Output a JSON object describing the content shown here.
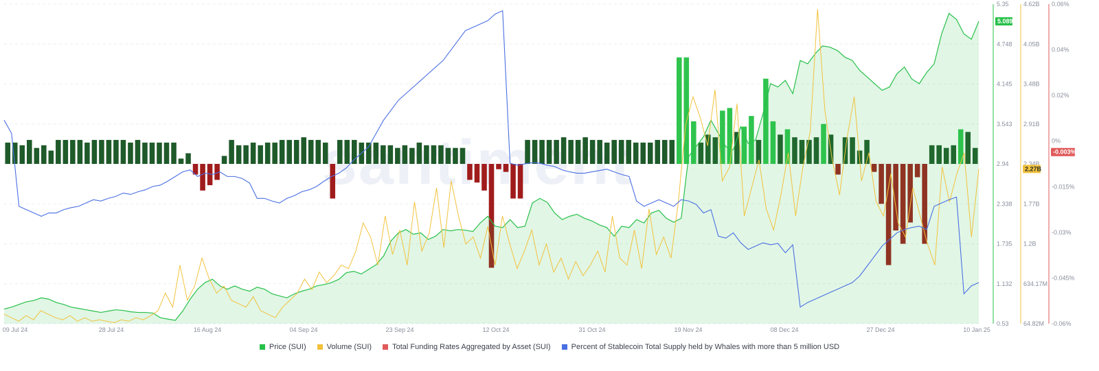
{
  "chart_data": {
    "type": "line",
    "watermark": "santiment",
    "x_ticks": [
      "09 Jul 24",
      "28 Jul 24",
      "16 Aug 24",
      "04 Sep 24",
      "23 Sep 24",
      "12 Oct 24",
      "31 Oct 24",
      "19 Nov 24",
      "08 Dec 24",
      "27 Dec 24",
      "10 Jan 25"
    ],
    "axes": {
      "price": {
        "ticks": [
          "5.35",
          "4.748",
          "4.145",
          "3.543",
          "2.94",
          "2.338",
          "1.735",
          "1.132",
          "0.53"
        ],
        "ylim": [
          0.53,
          5.35
        ],
        "current": "5.089"
      },
      "volume": {
        "ticks": [
          "4.62B",
          "4.05B",
          "3.48B",
          "2.91B",
          "2.34B",
          "1.77B",
          "1.2B",
          "634.17M",
          "64.82M"
        ],
        "ylim_billions": [
          0.06482,
          4.62
        ],
        "current": "2.27B"
      },
      "funding": {
        "ticks": [
          "0.06%",
          "0.04%",
          "0.02%",
          "0%",
          "-0.015%",
          "-0.03%",
          "-0.045%",
          "-0.06%"
        ],
        "ylim": [
          -0.06,
          0.06
        ],
        "current": "-0.003%"
      }
    },
    "series": [
      {
        "name": "Price (SUI)",
        "color": "#27c04a",
        "axis": "price",
        "values": [
          0.75,
          0.78,
          0.82,
          0.86,
          0.88,
          0.92,
          0.9,
          0.85,
          0.82,
          0.78,
          0.76,
          0.74,
          0.72,
          0.7,
          0.72,
          0.74,
          0.73,
          0.71,
          0.7,
          0.7,
          0.69,
          0.62,
          0.6,
          0.58,
          0.72,
          0.9,
          1.05,
          1.15,
          1.2,
          1.1,
          1.05,
          1.1,
          1.05,
          1.02,
          1.08,
          1.05,
          0.98,
          0.95,
          0.92,
          0.98,
          1.02,
          1.05,
          1.1,
          1.12,
          1.15,
          1.2,
          1.3,
          1.32,
          1.28,
          1.35,
          1.42,
          1.55,
          1.78,
          1.9,
          1.95,
          1.88,
          1.9,
          1.8,
          1.85,
          1.95,
          1.93,
          1.95,
          1.94,
          1.92,
          2.05,
          2.15,
          2.0,
          1.98,
          2.1,
          1.98,
          2.0,
          2.35,
          2.42,
          2.36,
          2.2,
          2.1,
          2.15,
          2.18,
          2.12,
          2.08,
          2.02,
          1.98,
          1.85,
          2.0,
          1.98,
          2.1,
          2.05,
          2.2,
          2.24,
          2.12,
          2.06,
          2.12,
          3.05,
          3.2,
          3.35,
          3.6,
          3.4,
          3.2,
          3.15,
          3.5,
          3.25,
          3.3,
          3.7,
          4.15,
          4.1,
          4.2,
          4.0,
          4.5,
          4.45,
          4.6,
          4.72,
          4.7,
          4.65,
          4.55,
          4.5,
          4.35,
          4.25,
          4.15,
          4.05,
          4.1,
          4.3,
          4.4,
          4.22,
          4.15,
          4.32,
          4.45,
          4.9,
          5.21,
          5.12,
          4.9,
          4.82,
          5.09
        ]
      },
      {
        "name": "Volume (SUI)",
        "color": "#f2c23d",
        "axis": "volume",
        "unit": "B",
        "values": [
          0.2,
          0.15,
          0.1,
          0.18,
          0.12,
          0.25,
          0.2,
          0.15,
          0.12,
          0.18,
          0.1,
          0.15,
          0.1,
          0.12,
          0.1,
          0.08,
          0.12,
          0.1,
          0.15,
          0.12,
          0.18,
          0.25,
          0.5,
          0.3,
          0.9,
          0.4,
          0.6,
          1.0,
          0.7,
          0.5,
          0.6,
          0.4,
          0.35,
          0.3,
          0.45,
          0.25,
          0.2,
          0.15,
          0.3,
          0.4,
          0.5,
          0.7,
          0.55,
          0.8,
          0.65,
          0.75,
          0.9,
          0.85,
          1.1,
          1.5,
          1.3,
          0.9,
          1.6,
          1.05,
          1.4,
          0.9,
          1.8,
          1.1,
          1.35,
          2.0,
          1.15,
          2.1,
          1.6,
          1.2,
          1.3,
          1.0,
          1.45,
          0.9,
          1.6,
          1.2,
          0.85,
          1.1,
          1.4,
          0.9,
          1.2,
          0.8,
          1.0,
          0.7,
          0.95,
          0.75,
          0.9,
          1.1,
          0.8,
          1.6,
          1.0,
          0.9,
          1.4,
          0.85,
          1.7,
          1.05,
          1.3,
          1.0,
          1.8,
          2.9,
          3.3,
          3.0,
          2.6,
          3.4,
          2.1,
          2.3,
          3.2,
          1.6,
          2.0,
          2.4,
          1.7,
          1.4,
          1.9,
          2.5,
          1.6,
          2.3,
          2.8,
          4.55,
          3.1,
          2.4,
          1.9,
          2.7,
          3.3,
          2.1,
          2.5,
          1.8,
          1.6,
          2.2,
          1.5,
          1.3,
          2.0,
          1.6,
          1.2,
          0.9,
          2.3,
          1.8,
          2.2,
          2.5,
          1.3,
          2.27
        ]
      },
      {
        "name": "Total Funding Rates Aggregated by Asset (SUI)",
        "color": "#e05a5a",
        "axis": "funding",
        "unit": "%",
        "values": [
          0.008,
          0.008,
          0.007,
          0.009,
          0.006,
          0.007,
          0.005,
          0.009,
          0.009,
          0.009,
          0.009,
          0.008,
          0.009,
          0.009,
          0.009,
          0.009,
          0.009,
          0.008,
          0.009,
          0.008,
          0.008,
          0.008,
          0.008,
          0.008,
          0.002,
          0.004,
          -0.004,
          -0.01,
          -0.008,
          -0.006,
          0.003,
          0.009,
          0.007,
          0.007,
          0.008,
          0.007,
          0.008,
          0.008,
          0.009,
          0.009,
          0.009,
          0.01,
          0.009,
          0.009,
          0.008,
          -0.013,
          0.009,
          0.009,
          0.009,
          0.008,
          0.008,
          0.008,
          0.007,
          0.007,
          0.006,
          0.007,
          0.006,
          0.008,
          0.007,
          0.007,
          0.007,
          0.006,
          0.006,
          0.006,
          -0.006,
          -0.007,
          -0.01,
          -0.039,
          -0.002,
          -0.003,
          -0.013,
          -0.013,
          0.009,
          0.009,
          0.009,
          0.009,
          0.009,
          0.01,
          0.009,
          0.009,
          0.01,
          0.009,
          0.009,
          0.008,
          0.009,
          0.009,
          0.009,
          0.008,
          0.008,
          0.008,
          0.009,
          0.009,
          0.009,
          0.04,
          0.04,
          0.016,
          0.008,
          0.011,
          0.01,
          0.02,
          0.021,
          0.012,
          0.014,
          0.018,
          0.009,
          0.032,
          0.016,
          0.011,
          0.013,
          0.01,
          0.009,
          0.009,
          0.01,
          0.015,
          0.011,
          -0.004,
          0.01,
          0.01,
          0.005,
          0.009,
          -0.003,
          -0.015,
          -0.038,
          -0.025,
          -0.03,
          -0.022,
          -0.005,
          -0.03,
          0.007,
          0.007,
          0.006,
          0.007,
          0.013,
          0.012,
          0.006
        ]
      },
      {
        "name": "Percent of Stablecoin Total Supply held by Whales with more than 5 million USD",
        "color": "#4a6fe3",
        "axis": "price",
        "values": [
          3.6,
          3.4,
          2.3,
          2.25,
          2.2,
          2.15,
          2.2,
          2.2,
          2.25,
          2.28,
          2.3,
          2.35,
          2.4,
          2.38,
          2.42,
          2.45,
          2.5,
          2.48,
          2.52,
          2.55,
          2.6,
          2.62,
          2.68,
          2.75,
          2.82,
          2.85,
          2.75,
          2.8,
          2.78,
          2.82,
          2.75,
          2.75,
          2.72,
          2.65,
          2.42,
          2.42,
          2.38,
          2.35,
          2.42,
          2.46,
          2.52,
          2.55,
          2.6,
          2.68,
          2.75,
          2.8,
          2.88,
          3.0,
          3.1,
          3.2,
          3.4,
          3.6,
          3.75,
          3.9,
          4.0,
          4.1,
          4.2,
          4.3,
          4.4,
          4.5,
          4.65,
          4.8,
          4.95,
          5.0,
          5.05,
          5.1,
          5.2,
          5.25,
          2.95,
          2.92,
          2.94,
          2.96,
          2.95,
          2.92,
          2.9,
          2.85,
          2.82,
          2.8,
          2.8,
          2.82,
          2.84,
          2.86,
          2.82,
          2.78,
          2.75,
          2.38,
          2.3,
          2.35,
          2.4,
          2.35,
          2.3,
          2.4,
          2.38,
          2.33,
          2.2,
          2.25,
          1.85,
          1.82,
          1.9,
          1.75,
          1.65,
          1.7,
          1.75,
          1.72,
          1.74,
          1.6,
          1.72,
          0.78,
          0.85,
          0.9,
          0.95,
          1.0,
          1.05,
          1.1,
          1.15,
          1.25,
          1.4,
          1.55,
          1.7,
          1.8,
          1.9,
          1.95,
          1.98,
          2.0,
          1.95,
          2.3,
          2.35,
          2.4,
          2.44,
          0.98,
          1.1,
          1.15
        ]
      }
    ],
    "legend_placement": "bottom",
    "grid": true
  }
}
